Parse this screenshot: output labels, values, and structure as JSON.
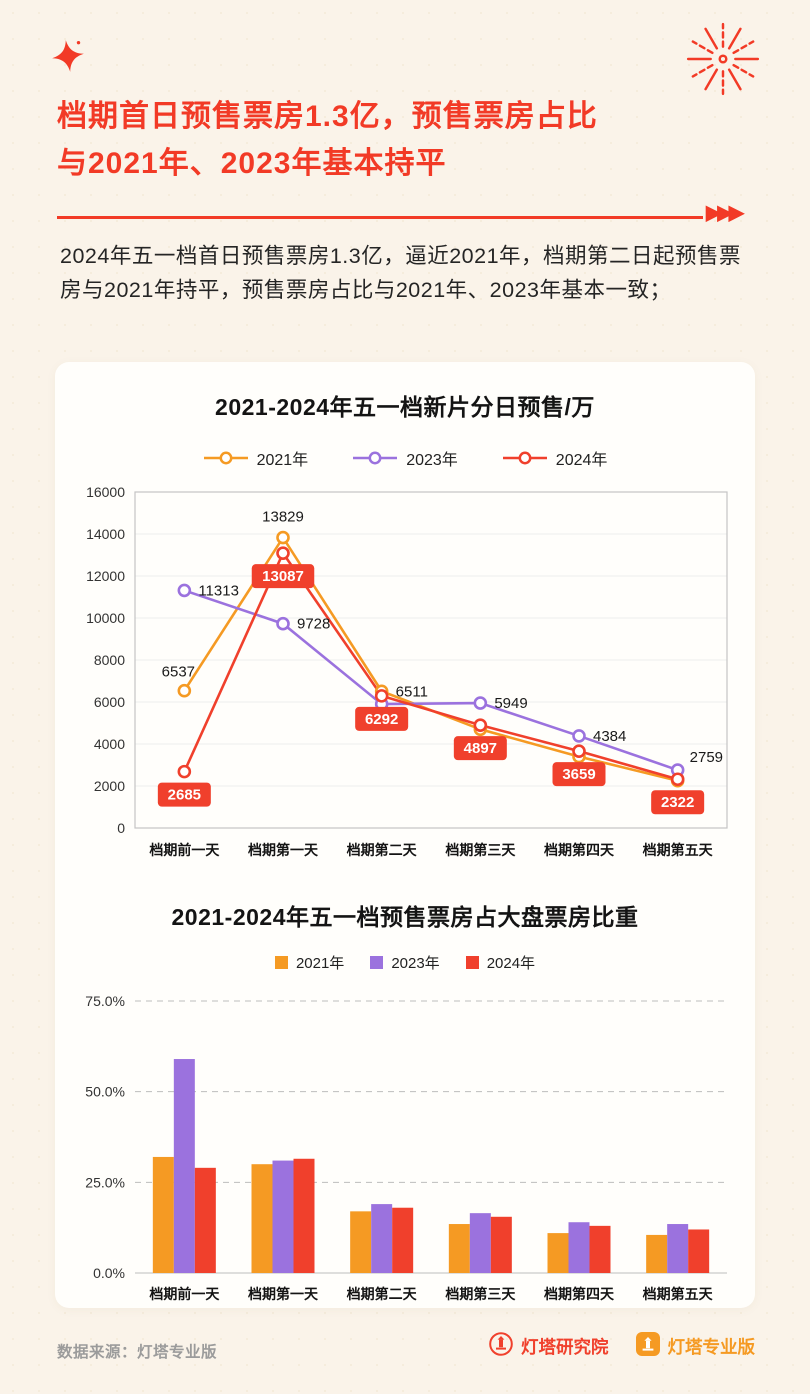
{
  "header": {
    "title_line1": "档期首日预售票房1.3亿，预售票房占比",
    "title_line2": "与2021年、2023年基本持平",
    "divider_arrows": "▶▶▶",
    "paragraph": "2024年五一档首日预售票房1.3亿，逼近2021年，档期第二日起预售票房与2021年持平，预售票房占比与2021年、2023年基本一致；"
  },
  "footer": {
    "source": "数据来源：灯塔专业版",
    "logo1_text": "灯塔研究院",
    "logo2_text": "灯塔专业版"
  },
  "colors": {
    "accent_red": "#f23a26",
    "series_2021": "#f59a23",
    "series_2023": "#9b72de",
    "series_2024": "#f0402c",
    "background": "#faf3e9",
    "card": "#fffefb"
  },
  "chart_data": [
    {
      "type": "line",
      "title": "2021-2024年五一档新片分日预售/万",
      "categories": [
        "档期前一天",
        "档期第一天",
        "档期第二天",
        "档期第三天",
        "档期第四天",
        "档期第五天"
      ],
      "series": [
        {
          "name": "2021年",
          "color": "#f59a23",
          "values": [
            6537,
            13829,
            6511,
            4700,
            3400,
            2250
          ],
          "point_labels": [
            0,
            1,
            2
          ],
          "label_style": "plain"
        },
        {
          "name": "2023年",
          "color": "#9b72de",
          "values": [
            11313,
            9728,
            5900,
            5949,
            4384,
            2759
          ],
          "point_labels": [
            0,
            1,
            3,
            4,
            5
          ],
          "label_style": "plain"
        },
        {
          "name": "2024年",
          "color": "#f0402c",
          "values": [
            2685,
            13087,
            6292,
            4897,
            3659,
            2322
          ],
          "point_labels": [
            0,
            1,
            2,
            3,
            4,
            5
          ],
          "label_style": "box"
        }
      ],
      "ylim": [
        0,
        16000
      ],
      "yticks": [
        0,
        2000,
        4000,
        6000,
        8000,
        10000,
        12000,
        14000,
        16000
      ],
      "legend_position": "top",
      "grid": "solid-light"
    },
    {
      "type": "bar",
      "title": "2021-2024年五一档预售票房占大盘票房比重",
      "categories": [
        "档期前一天",
        "档期第一天",
        "档期第二天",
        "档期第三天",
        "档期第四天",
        "档期第五天"
      ],
      "series": [
        {
          "name": "2021年",
          "color": "#f59a23",
          "values": [
            32,
            30,
            17,
            13.5,
            11,
            10.5
          ]
        },
        {
          "name": "2023年",
          "color": "#9b72de",
          "values": [
            59,
            31,
            19,
            16.5,
            14,
            13.5
          ]
        },
        {
          "name": "2024年",
          "color": "#f0402c",
          "values": [
            29,
            31.5,
            18,
            15.5,
            13,
            12
          ]
        }
      ],
      "ylim": [
        0,
        75
      ],
      "yticks": [
        0,
        25,
        50,
        75
      ],
      "ytick_labels": [
        "0.0%",
        "25.0%",
        "50.0%",
        "75.0%"
      ],
      "legend_position": "top",
      "grid": "dashed"
    }
  ]
}
